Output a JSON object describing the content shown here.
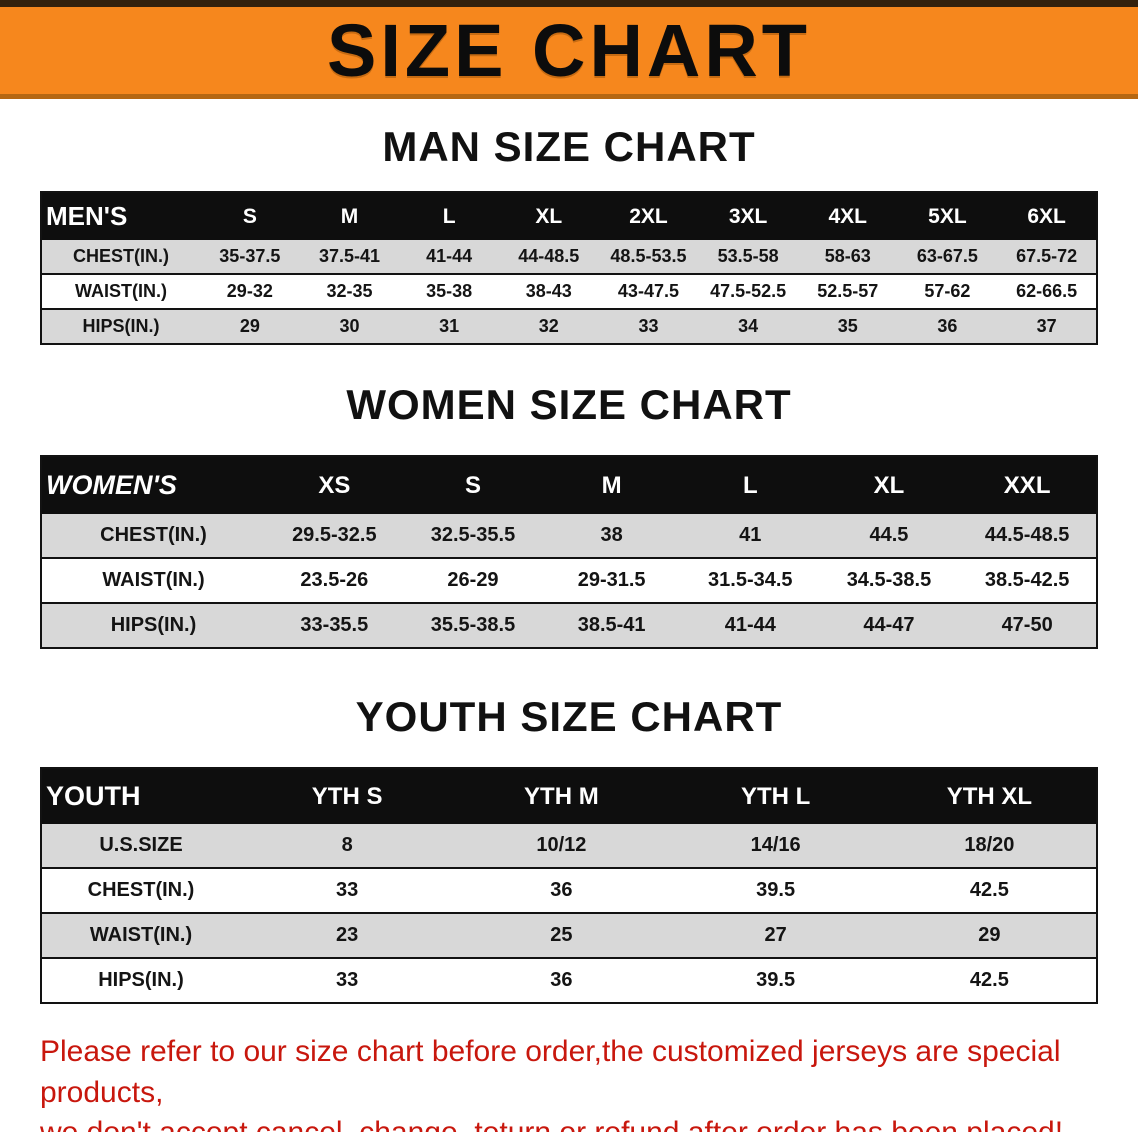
{
  "banner": {
    "title": "SIZE CHART",
    "bg_color": "#f6871d"
  },
  "sections": [
    {
      "heading": "MAN SIZE CHART",
      "table": {
        "corner_label": "MEN'S",
        "columns": [
          "S",
          "M",
          "L",
          "XL",
          "2XL",
          "3XL",
          "4XL",
          "5XL",
          "6XL"
        ],
        "rows": [
          {
            "label": "CHEST(IN.)",
            "values": [
              "35-37.5",
              "37.5-41",
              "41-44",
              "44-48.5",
              "48.5-53.5",
              "53.5-58",
              "58-63",
              "63-67.5",
              "67.5-72"
            ]
          },
          {
            "label": "WAIST(IN.)",
            "values": [
              "29-32",
              "32-35",
              "35-38",
              "38-43",
              "43-47.5",
              "47.5-52.5",
              "52.5-57",
              "57-62",
              "62-66.5"
            ]
          },
          {
            "label": "HIPS(IN.)",
            "values": [
              "29",
              "30",
              "31",
              "32",
              "33",
              "34",
              "35",
              "36",
              "37"
            ]
          }
        ]
      }
    },
    {
      "heading": "WOMEN SIZE CHART",
      "table": {
        "corner_label": "WOMEN'S",
        "columns": [
          "XS",
          "S",
          "M",
          "L",
          "XL",
          "XXL"
        ],
        "rows": [
          {
            "label": "CHEST(IN.)",
            "values": [
              "29.5-32.5",
              "32.5-35.5",
              "38",
              "41",
              "44.5",
              "44.5-48.5"
            ]
          },
          {
            "label": "WAIST(IN.)",
            "values": [
              "23.5-26",
              "26-29",
              "29-31.5",
              "31.5-34.5",
              "34.5-38.5",
              "38.5-42.5"
            ]
          },
          {
            "label": "HIPS(IN.)",
            "values": [
              "33-35.5",
              "35.5-38.5",
              "38.5-41",
              "41-44",
              "44-47",
              "47-50"
            ]
          }
        ]
      }
    },
    {
      "heading": "YOUTH SIZE CHART",
      "table": {
        "corner_label": "YOUTH",
        "columns": [
          "YTH S",
          "YTH M",
          "YTH L",
          "YTH XL"
        ],
        "rows": [
          {
            "label": "U.S.SIZE",
            "values": [
              "8",
              "10/12",
              "14/16",
              "18/20"
            ]
          },
          {
            "label": "CHEST(IN.)",
            "values": [
              "33",
              "36",
              "39.5",
              "42.5"
            ]
          },
          {
            "label": "WAIST(IN.)",
            "values": [
              "23",
              "25",
              "27",
              "29"
            ]
          },
          {
            "label": "HIPS(IN.)",
            "values": [
              "33",
              "36",
              "39.5",
              "42.5"
            ]
          }
        ]
      }
    }
  ],
  "footer": {
    "line1": "Please refer to our size chart before order,the customized jerseys are special products,",
    "line2": "we don't accept cancel, change, teturn or refund after order has been placed!",
    "text_color": "#c8170d"
  }
}
